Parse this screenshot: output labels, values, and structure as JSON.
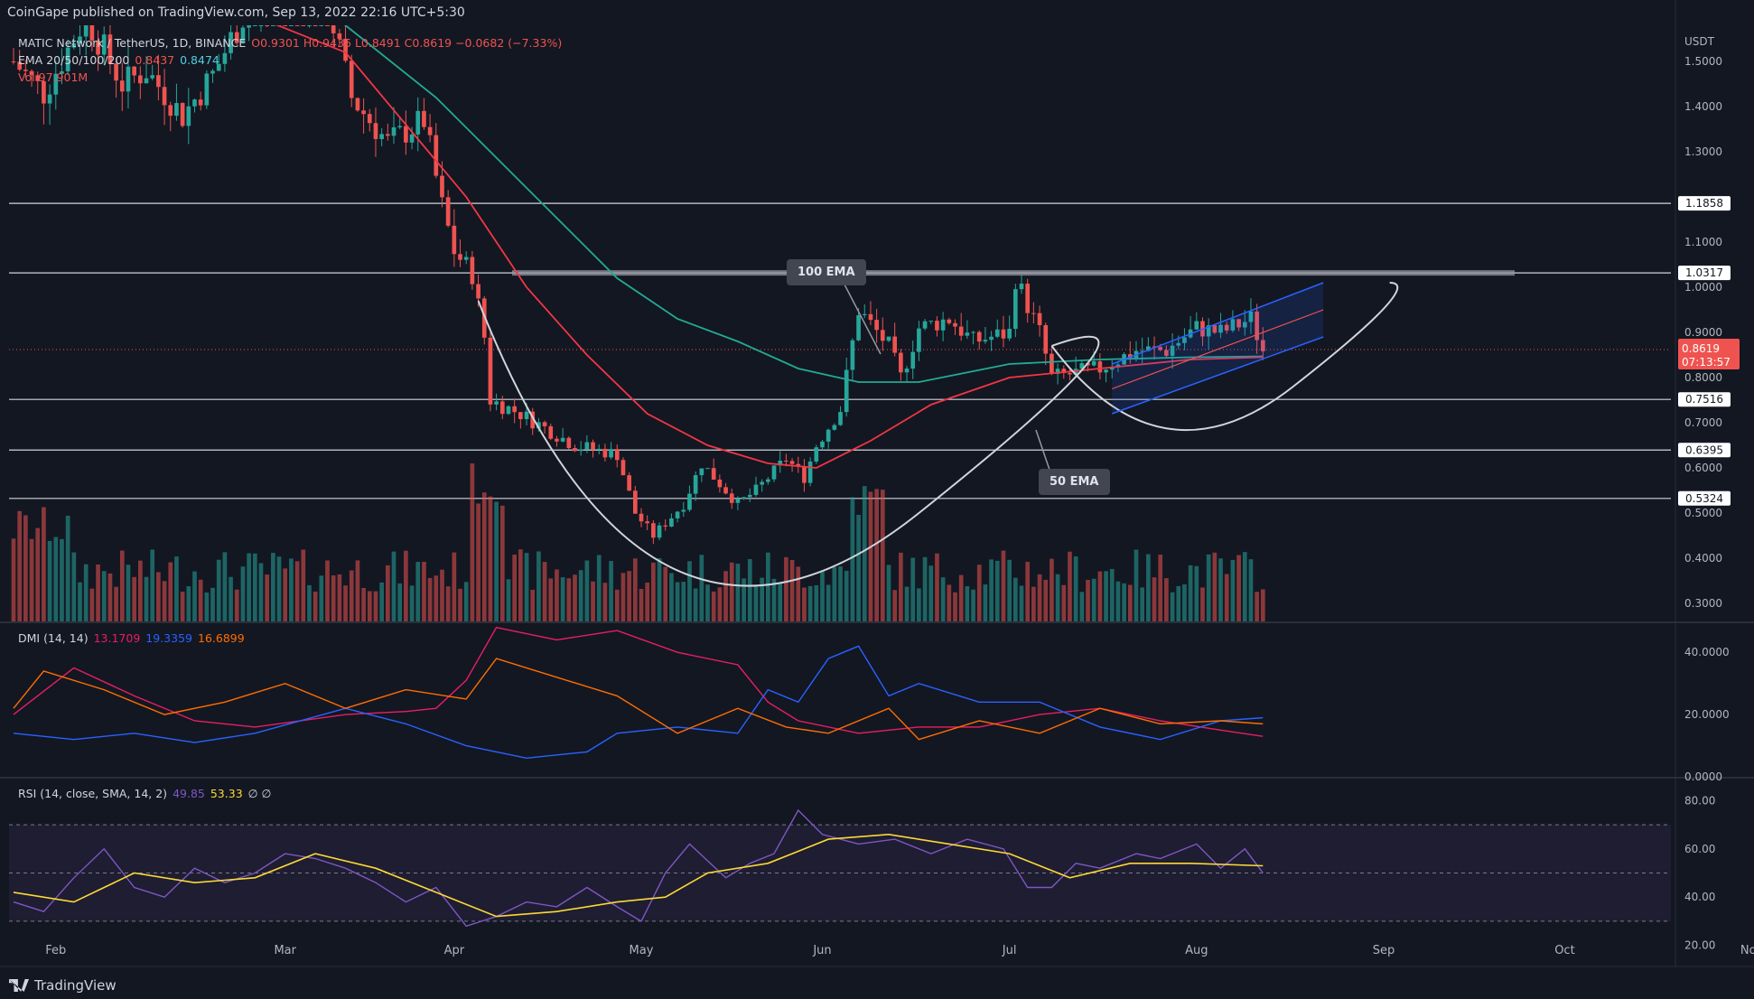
{
  "header": "CoinGape published on TradingView.com, Sep 13, 2022 22:16 UTC+5:30",
  "brand": "TradingView",
  "legend": {
    "symbol": "MATIC Network / TetherUS, 1D, BINANCE",
    "ohlc": "O0.9301  H0.9436  L0.8491  C0.8619  −0.0682 (−7.33%)",
    "ema_label": "EMA 20/50/100/200",
    "ema_val1": "0.8437",
    "ema_val2": "0.8474",
    "vol": "Vol 97.901M"
  },
  "dmi_legend": {
    "label": "DMI (14, 14)",
    "v1": "13.1709",
    "v2": "19.3359",
    "v3": "16.6899"
  },
  "rsi_legend": {
    "label": "RSI (14, close, SMA, 14, 2)",
    "v1": "49.85",
    "v2": "53.33",
    "v3": "∅  ∅"
  },
  "annotations": {
    "ema100": "100 EMA",
    "ema50": "50 EMA"
  },
  "colors": {
    "bg": "#131722",
    "up": "#26a69a",
    "down": "#ef5350",
    "ema50": "#f23645",
    "ema100": "#22ab94",
    "channel": "#2962ff",
    "dmi_plus": "#2962ff",
    "dmi_minus": "#e91e63",
    "adx": "#ff6d00",
    "rsi": "#7e57c2",
    "rsi_ma": "#fdd835"
  },
  "chart_data": {
    "type": "candlestick",
    "quote": "USDT",
    "x_ticks": [
      "Feb",
      "Mar",
      "Apr",
      "May",
      "Jun",
      "Jul",
      "Aug",
      "Sep",
      "Oct",
      "Nov"
    ],
    "y_ticks": [
      "1.5000",
      "1.4000",
      "1.3000",
      "1.1000",
      "1.0000",
      "0.9000",
      "0.8000",
      "0.7000",
      "0.6000",
      "0.5000",
      "0.4000",
      "0.3000"
    ],
    "ylim": [
      0.26,
      1.58
    ],
    "levels": [
      {
        "label": "1.1858",
        "y": 1.1858
      },
      {
        "label": "1.0317",
        "y": 1.0317
      },
      {
        "label": "0.7516",
        "y": 0.7516
      },
      {
        "label": "0.6395",
        "y": 0.6395
      },
      {
        "label": "0.5324",
        "y": 0.5324
      }
    ],
    "last_price": {
      "label": "0.8619",
      "y": 0.8619,
      "countdown": "07:13:57"
    },
    "price_path": [
      [
        0,
        1.5
      ],
      [
        5,
        1.43
      ],
      [
        12,
        1.6
      ],
      [
        18,
        1.45
      ],
      [
        22,
        1.48
      ],
      [
        28,
        1.38
      ],
      [
        33,
        1.47
      ],
      [
        38,
        1.6
      ],
      [
        46,
        1.66
      ],
      [
        52,
        1.63
      ],
      [
        56,
        1.42
      ],
      [
        62,
        1.32
      ],
      [
        68,
        1.37
      ],
      [
        71,
        1.18
      ],
      [
        73,
        1.08
      ],
      [
        76,
        1.03
      ],
      [
        78,
        0.89
      ],
      [
        79,
        0.75
      ],
      [
        84,
        0.72
      ],
      [
        93,
        0.65
      ],
      [
        100,
        0.63
      ],
      [
        103,
        0.5
      ],
      [
        106,
        0.45
      ],
      [
        111,
        0.52
      ],
      [
        114,
        0.61
      ],
      [
        120,
        0.52
      ],
      [
        123,
        0.55
      ],
      [
        128,
        0.62
      ],
      [
        131,
        0.58
      ],
      [
        133,
        0.65
      ],
      [
        137,
        0.73
      ],
      [
        140,
        0.95
      ],
      [
        145,
        0.87
      ],
      [
        147,
        0.8
      ],
      [
        150,
        0.91
      ],
      [
        155,
        0.93
      ],
      [
        159,
        0.88
      ],
      [
        165,
        0.9
      ],
      [
        166,
        1.02
      ],
      [
        170,
        0.9
      ],
      [
        172,
        0.8
      ],
      [
        180,
        0.82
      ],
      [
        186,
        0.86
      ],
      [
        191,
        0.86
      ],
      [
        196,
        0.91
      ],
      [
        200,
        0.9
      ],
      [
        205,
        0.93
      ],
      [
        207,
        0.86
      ]
    ],
    "ema50": [
      [
        0,
        1.62
      ],
      [
        20,
        1.63
      ],
      [
        40,
        1.6
      ],
      [
        55,
        1.52
      ],
      [
        65,
        1.36
      ],
      [
        75,
        1.2
      ],
      [
        85,
        1.0
      ],
      [
        95,
        0.85
      ],
      [
        105,
        0.72
      ],
      [
        115,
        0.65
      ],
      [
        125,
        0.61
      ],
      [
        133,
        0.6
      ],
      [
        142,
        0.66
      ],
      [
        152,
        0.74
      ],
      [
        165,
        0.8
      ],
      [
        180,
        0.82
      ],
      [
        195,
        0.84
      ],
      [
        207,
        0.845
      ]
    ],
    "ema100": [
      [
        40,
        1.68
      ],
      [
        55,
        1.58
      ],
      [
        70,
        1.42
      ],
      [
        85,
        1.22
      ],
      [
        100,
        1.02
      ],
      [
        110,
        0.93
      ],
      [
        120,
        0.88
      ],
      [
        130,
        0.82
      ],
      [
        140,
        0.79
      ],
      [
        150,
        0.79
      ],
      [
        165,
        0.83
      ],
      [
        180,
        0.84
      ],
      [
        195,
        0.845
      ],
      [
        207,
        0.847
      ]
    ],
    "dmi_plus": [
      [
        0,
        14
      ],
      [
        10,
        12
      ],
      [
        20,
        14
      ],
      [
        30,
        11
      ],
      [
        40,
        14
      ],
      [
        55,
        22
      ],
      [
        65,
        17
      ],
      [
        75,
        10
      ],
      [
        85,
        6
      ],
      [
        95,
        8
      ],
      [
        100,
        14
      ],
      [
        110,
        16
      ],
      [
        120,
        14
      ],
      [
        125,
        28
      ],
      [
        130,
        24
      ],
      [
        135,
        38
      ],
      [
        140,
        42
      ],
      [
        145,
        26
      ],
      [
        150,
        30
      ],
      [
        160,
        24
      ],
      [
        170,
        24
      ],
      [
        180,
        16
      ],
      [
        190,
        12
      ],
      [
        200,
        18
      ],
      [
        207,
        19
      ]
    ],
    "dmi_minus": [
      [
        0,
        20
      ],
      [
        10,
        35
      ],
      [
        20,
        26
      ],
      [
        30,
        18
      ],
      [
        40,
        16
      ],
      [
        55,
        20
      ],
      [
        65,
        21
      ],
      [
        70,
        22
      ],
      [
        75,
        31
      ],
      [
        80,
        48
      ],
      [
        90,
        44
      ],
      [
        100,
        47
      ],
      [
        110,
        40
      ],
      [
        120,
        36
      ],
      [
        125,
        24
      ],
      [
        130,
        18
      ],
      [
        140,
        14
      ],
      [
        150,
        16
      ],
      [
        160,
        16
      ],
      [
        170,
        20
      ],
      [
        180,
        22
      ],
      [
        190,
        18
      ],
      [
        200,
        15
      ],
      [
        207,
        13
      ]
    ],
    "adx": [
      [
        0,
        22
      ],
      [
        5,
        34
      ],
      [
        15,
        28
      ],
      [
        25,
        20
      ],
      [
        35,
        24
      ],
      [
        45,
        30
      ],
      [
        55,
        22
      ],
      [
        65,
        28
      ],
      [
        75,
        25
      ],
      [
        80,
        38
      ],
      [
        90,
        32
      ],
      [
        100,
        26
      ],
      [
        110,
        14
      ],
      [
        120,
        22
      ],
      [
        128,
        16
      ],
      [
        135,
        14
      ],
      [
        145,
        22
      ],
      [
        150,
        12
      ],
      [
        160,
        18
      ],
      [
        170,
        14
      ],
      [
        180,
        22
      ],
      [
        190,
        17
      ],
      [
        200,
        18
      ],
      [
        207,
        17
      ]
    ],
    "rsi": [
      [
        0,
        38
      ],
      [
        5,
        34
      ],
      [
        10,
        48
      ],
      [
        15,
        60
      ],
      [
        20,
        44
      ],
      [
        25,
        40
      ],
      [
        30,
        52
      ],
      [
        35,
        46
      ],
      [
        40,
        50
      ],
      [
        45,
        58
      ],
      [
        50,
        56
      ],
      [
        55,
        52
      ],
      [
        60,
        46
      ],
      [
        65,
        38
      ],
      [
        70,
        44
      ],
      [
        75,
        28
      ],
      [
        80,
        32
      ],
      [
        85,
        38
      ],
      [
        90,
        36
      ],
      [
        95,
        44
      ],
      [
        100,
        36
      ],
      [
        104,
        30
      ],
      [
        108,
        50
      ],
      [
        112,
        62
      ],
      [
        118,
        48
      ],
      [
        122,
        54
      ],
      [
        126,
        58
      ],
      [
        130,
        76
      ],
      [
        134,
        66
      ],
      [
        140,
        62
      ],
      [
        146,
        64
      ],
      [
        152,
        58
      ],
      [
        158,
        64
      ],
      [
        164,
        60
      ],
      [
        168,
        44
      ],
      [
        172,
        44
      ],
      [
        176,
        54
      ],
      [
        180,
        52
      ],
      [
        186,
        58
      ],
      [
        190,
        56
      ],
      [
        196,
        62
      ],
      [
        200,
        52
      ],
      [
        204,
        60
      ],
      [
        207,
        50
      ]
    ],
    "rsi_ma": [
      [
        0,
        42
      ],
      [
        10,
        38
      ],
      [
        20,
        50
      ],
      [
        30,
        46
      ],
      [
        40,
        48
      ],
      [
        50,
        58
      ],
      [
        60,
        52
      ],
      [
        70,
        42
      ],
      [
        80,
        32
      ],
      [
        90,
        34
      ],
      [
        100,
        38
      ],
      [
        108,
        40
      ],
      [
        115,
        50
      ],
      [
        125,
        54
      ],
      [
        135,
        64
      ],
      [
        145,
        66
      ],
      [
        155,
        62
      ],
      [
        165,
        58
      ],
      [
        175,
        48
      ],
      [
        185,
        54
      ],
      [
        195,
        54
      ],
      [
        207,
        53
      ]
    ],
    "volume_scale": [
      0,
      12
    ]
  }
}
